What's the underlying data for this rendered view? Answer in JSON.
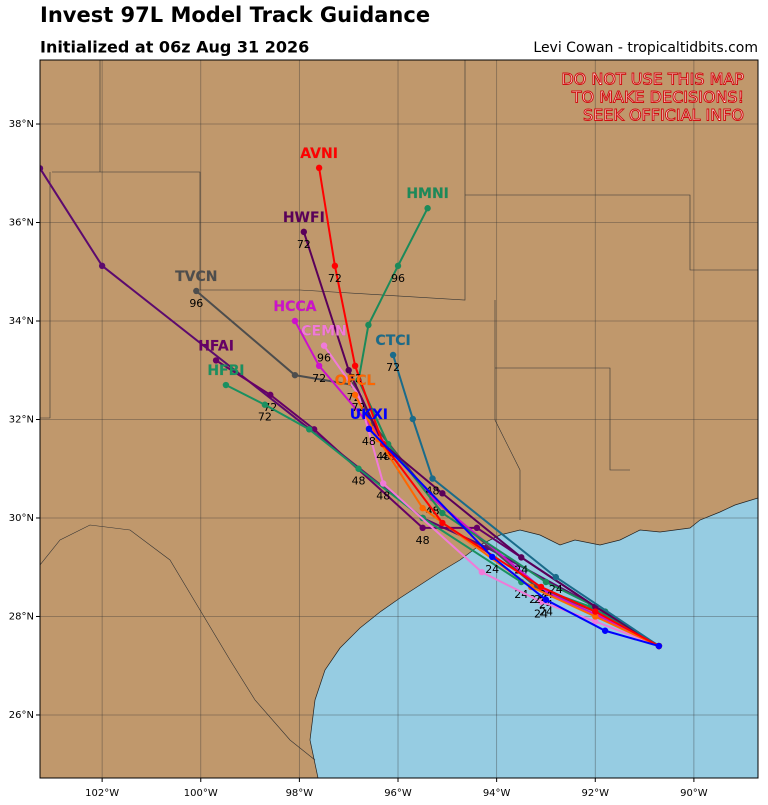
{
  "chart_data": {
    "type": "line",
    "title": "Invest 97L Model Track Guidance",
    "subtitle": "Initialized at 06z Aug 31 2026",
    "credit": "Levi Cowan - tropicaltidbits.com",
    "annotations": [
      "DO NOT USE THIS MAP",
      "TO MAKE DECISIONS!",
      "SEEK OFFICIAL INFO"
    ],
    "xlim": [
      -103.26,
      -88.7
    ],
    "ylim": [
      24.72,
      39.3
    ],
    "xticks": [
      {
        "value": -102,
        "label": "102°W"
      },
      {
        "value": -100,
        "label": "100°W"
      },
      {
        "value": -98,
        "label": "98°W"
      },
      {
        "value": -96,
        "label": "96°W"
      },
      {
        "value": -94,
        "label": "94°W"
      },
      {
        "value": -92,
        "label": "92°W"
      },
      {
        "value": -90,
        "label": "90°W"
      }
    ],
    "yticks": [
      {
        "value": 26,
        "label": "26°N"
      },
      {
        "value": 28,
        "label": "28°N"
      },
      {
        "value": 30,
        "label": "30°N"
      },
      {
        "value": 32,
        "label": "32°N"
      },
      {
        "value": 34,
        "label": "34°N"
      },
      {
        "value": 36,
        "label": "36°N"
      },
      {
        "value": 38,
        "label": "38°N"
      }
    ],
    "grid": true,
    "series": [
      {
        "name": null,
        "color": "#5c0a6e",
        "x": [
          -90.71,
          -92.0,
          -94.2,
          -95.5,
          -102.0,
          -103.26
        ],
        "values": [
          27.4,
          28.2,
          29.4,
          30.0,
          35.12,
          37.1
        ],
        "hour_labels": [
          null,
          null,
          null,
          null,
          null,
          null
        ]
      },
      {
        "name": "HFAI",
        "color": "#660066",
        "x": [
          -90.71,
          -92.0,
          -94.4,
          -95.5,
          -97.7,
          -98.59,
          -99.69
        ],
        "values": [
          27.4,
          28.2,
          29.8,
          29.8,
          31.8,
          32.5,
          33.2
        ],
        "hour_labels": [
          null,
          null,
          null,
          "48",
          null,
          "72",
          null
        ]
      },
      {
        "name": "HFBI",
        "color": "#1a9060",
        "x": [
          -90.71,
          -92.1,
          -93.5,
          -95.5,
          -96.8,
          -97.8,
          -98.7,
          -99.49
        ],
        "values": [
          27.4,
          28.2,
          28.7,
          30.0,
          31.0,
          31.8,
          32.3,
          32.7
        ],
        "hour_labels": [
          null,
          null,
          "24",
          null,
          "48",
          null,
          "72",
          null
        ]
      },
      {
        "name": "TVCN",
        "color": "#4d4d4d",
        "x": [
          -90.71,
          -92.0,
          -93.2,
          -95.3,
          -96.5,
          -96.9,
          -98.09,
          -100.09
        ],
        "values": [
          27.4,
          28.1,
          28.6,
          30.4,
          31.9,
          32.7,
          32.9,
          34.61
        ],
        "hour_labels": [
          null,
          null,
          "24",
          "48",
          null,
          "72",
          null,
          "96"
        ]
      },
      {
        "name": "HCCA",
        "color": "#cc11cc",
        "x": [
          -90.71,
          -91.9,
          -93.0,
          -95.3,
          -96.5,
          -97.6,
          -98.09
        ],
        "values": [
          27.4,
          28.0,
          28.5,
          30.4,
          31.8,
          33.09,
          34.0
        ],
        "hour_labels": [
          null,
          null,
          "24",
          "48",
          null,
          "72",
          null
        ]
      },
      {
        "name": "CEMN",
        "color": "#f07ad8",
        "x": [
          -90.71,
          -92.0,
          -93.1,
          -94.3,
          -96.3,
          -96.8,
          -97.5
        ],
        "values": [
          27.4,
          27.9,
          28.3,
          28.9,
          30.7,
          32.5,
          33.5
        ],
        "hour_labels": [
          null,
          null,
          "24",
          null,
          "48",
          "72",
          "96"
        ]
      },
      {
        "name": "HMNI",
        "color": "#1b8a5a",
        "x": [
          -90.71,
          -91.8,
          -93.0,
          -95.1,
          -96.2,
          -96.8,
          -96.6,
          -96.0,
          -95.4
        ],
        "values": [
          27.4,
          28.1,
          28.7,
          30.1,
          31.5,
          32.8,
          33.92,
          35.12,
          36.29
        ],
        "hour_labels": [
          null,
          null,
          "24",
          null,
          "48",
          null,
          null,
          "96",
          null
        ]
      },
      {
        "name": "HWFI",
        "color": "#5a005a",
        "x": [
          -90.71,
          -92.0,
          -93.5,
          -95.1,
          -96.3,
          -97.0,
          -97.91
        ],
        "values": [
          27.4,
          28.2,
          29.2,
          30.5,
          31.5,
          33.0,
          35.81
        ],
        "hour_labels": [
          null,
          null,
          "24",
          null,
          "48",
          null,
          "72"
        ]
      },
      {
        "name": "CTCI",
        "color": "#1a6b8a",
        "x": [
          -90.71,
          -92.8,
          -95.3,
          -95.7,
          -96.1
        ],
        "values": [
          27.4,
          28.8,
          30.8,
          32.01,
          33.31
        ],
        "hour_labels": [
          null,
          "24",
          "48",
          null,
          "72"
        ]
      },
      {
        "name": "OFCL",
        "color": "#ff6600",
        "x": [
          -90.71,
          -92.0,
          -93.3,
          -95.5,
          -96.4,
          -96.87
        ],
        "values": [
          27.4,
          28.0,
          28.6,
          30.2,
          31.6,
          32.5
        ],
        "hour_labels": [
          null,
          null,
          null,
          null,
          null,
          null
        ]
      },
      {
        "name": "AVNI",
        "color": "#ff0000",
        "x": [
          -90.71,
          -92.0,
          -93.1,
          -95.1,
          -96.3,
          -96.87,
          -97.28,
          -97.6
        ],
        "values": [
          27.4,
          28.1,
          28.6,
          29.9,
          31.5,
          33.09,
          35.12,
          37.11
        ],
        "hour_labels": [
          null,
          null,
          "24",
          null,
          null,
          "72",
          "72",
          null
        ]
      },
      {
        "name": "UKXI",
        "color": "#0000ff",
        "x": [
          -90.71,
          -91.8,
          -93.0,
          -94.09,
          -96.59
        ],
        "values": [
          27.4,
          27.71,
          28.34,
          29.21,
          31.81
        ],
        "hour_labels": [
          null,
          null,
          "24",
          "24",
          "48"
        ]
      }
    ]
  }
}
